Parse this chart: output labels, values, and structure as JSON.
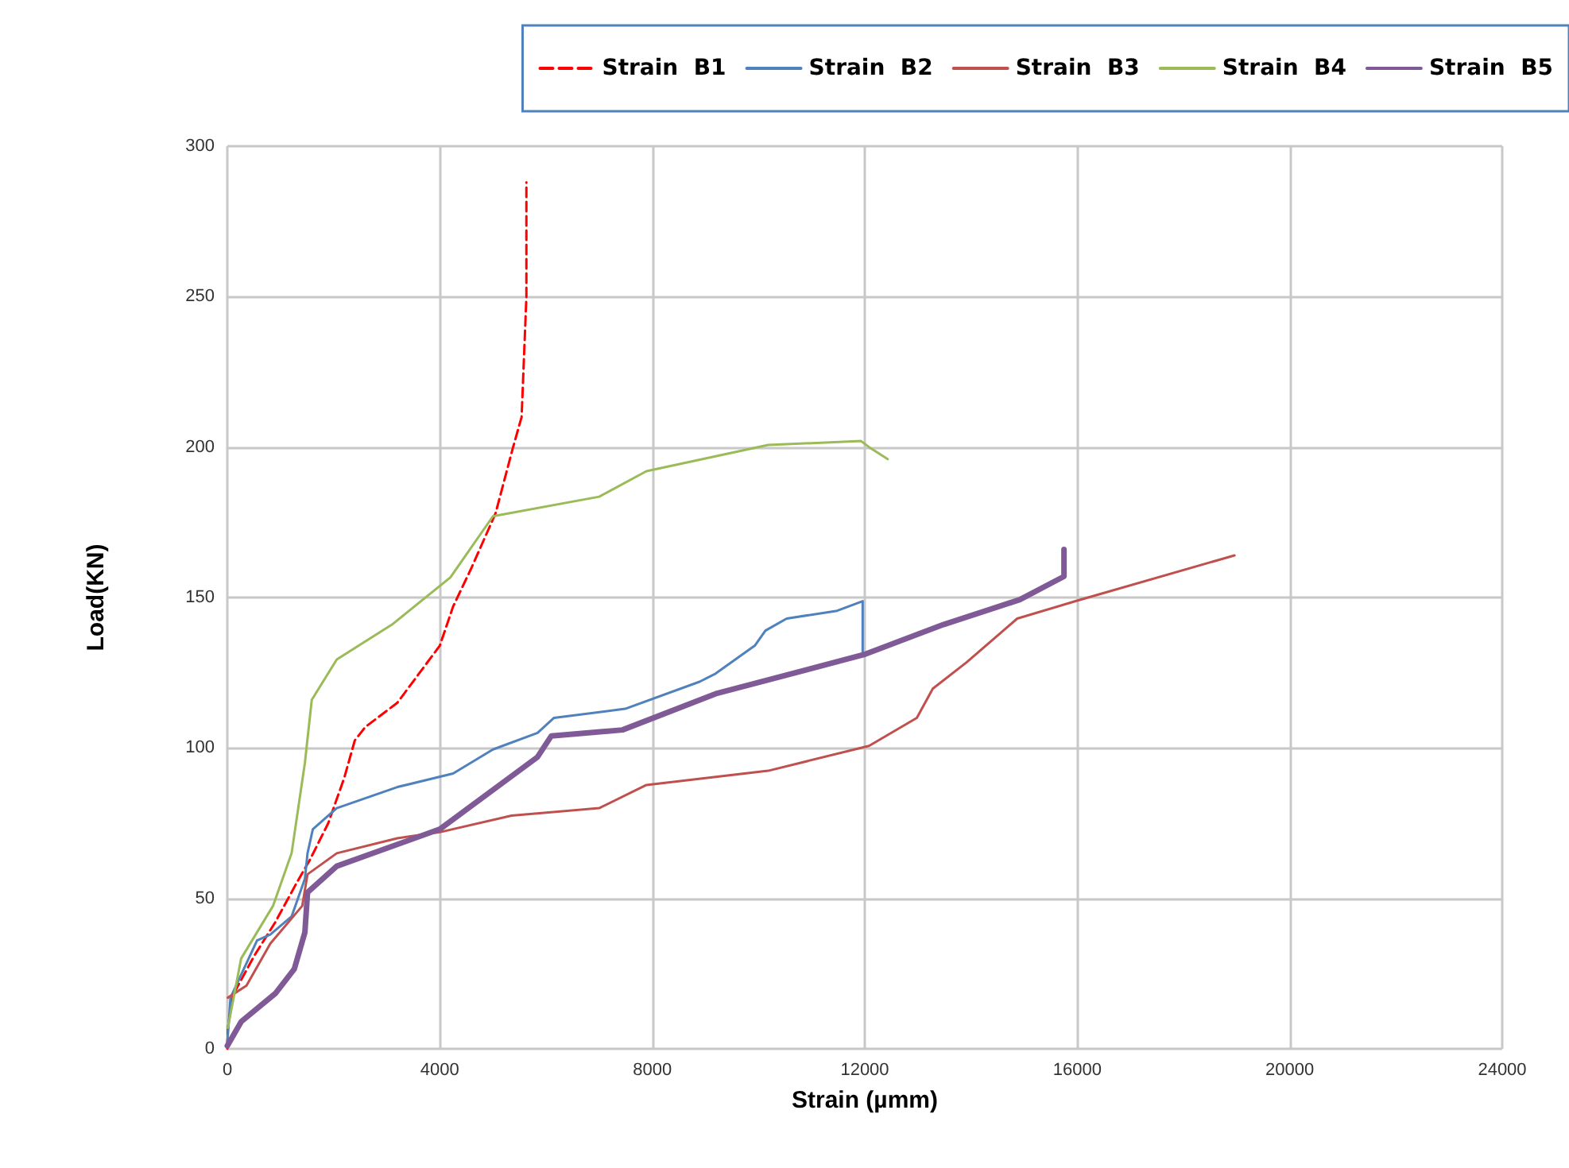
{
  "chart_data": {
    "type": "line",
    "xlabel": "Strain (µmm)",
    "ylabel": "Load(KN)",
    "xlim": [
      0,
      24000
    ],
    "xticks": [
      0,
      4000,
      8000,
      12000,
      16000,
      20000,
      24000
    ],
    "ylim": [
      0,
      300
    ],
    "yticks": [
      0,
      50,
      100,
      150,
      200,
      250,
      300
    ],
    "grid": true,
    "legend": "top",
    "marker": "none",
    "series": [
      {
        "name": "Strain  B1",
        "color": "#ff0000",
        "line_style": "dashed",
        "x": [
          0,
          10,
          110,
          510,
          900,
          1300,
          1560,
          1900,
          2200,
          2400,
          2600,
          3200,
          4000,
          4250,
          4600,
          5050,
          5380,
          5540,
          5630,
          5630
        ],
        "values": [
          0,
          7,
          18,
          31,
          42,
          55,
          63,
          75,
          90,
          102.5,
          107,
          115,
          134,
          147,
          160,
          178,
          200,
          210,
          250,
          288
        ]
      },
      {
        "name": "Strain  B2",
        "color": "#4f81bd",
        "line_style": "solid",
        "x": [
          0,
          60,
          560,
          810,
          1210,
          1460,
          1510,
          1610,
          2060,
          3200,
          4250,
          5000,
          5840,
          6150,
          7490,
          8890,
          9190,
          9930,
          10130,
          10530,
          11480,
          11960,
          11960
        ],
        "values": [
          2,
          17,
          36,
          38,
          44,
          56.5,
          65,
          73,
          80,
          87,
          91.5,
          99.5,
          105,
          110,
          113,
          122,
          124.7,
          134,
          139,
          143,
          145.6,
          148.8,
          132
        ]
      },
      {
        "name": "Strain  B3",
        "color": "#c0504d",
        "line_style": "solid",
        "x": [
          10,
          360,
          810,
          1410,
          1510,
          2060,
          3200,
          4000,
          5350,
          7000,
          7890,
          10180,
          12080,
          12980,
          13280,
          13920,
          14870,
          15970,
          18960
        ],
        "values": [
          17,
          21,
          35,
          47.5,
          58,
          65,
          70,
          72,
          77.5,
          80,
          87.7,
          92.4,
          100.7,
          110,
          119.7,
          128.5,
          143,
          148.8,
          164
        ]
      },
      {
        "name": "Strain  B4",
        "color": "#9bbb59",
        "line_style": "solid",
        "x": [
          10,
          260,
          860,
          1210,
          1460,
          1590,
          2060,
          3100,
          4200,
          5000,
          7000,
          7890,
          10180,
          11930,
          12080,
          12430
        ],
        "values": [
          7,
          30,
          47.5,
          65,
          95,
          116,
          129.4,
          141,
          156.7,
          177,
          183.5,
          192,
          200.7,
          202,
          200,
          196
        ]
      },
      {
        "name": "Strain  B5",
        "color": "#7f5a96",
        "line_style": "solid",
        "x": [
          0,
          260,
          910,
          1260,
          1460,
          1510,
          2060,
          4000,
          5840,
          6100,
          7440,
          9190,
          11980,
          13480,
          14920,
          15750,
          15750
        ],
        "values": [
          1,
          9,
          18.5,
          26.5,
          38.7,
          52,
          60.7,
          73,
          97,
          104,
          106,
          118,
          131,
          141,
          149.3,
          157,
          166
        ]
      }
    ]
  }
}
